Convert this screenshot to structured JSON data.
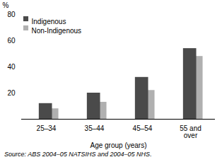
{
  "chart_data": {
    "type": "bar",
    "categories": [
      "25–34",
      "35–44",
      "45–54",
      "55 and\nover"
    ],
    "series": [
      {
        "name": "Indigenous",
        "color": "#4a4a4a",
        "values": [
          12,
          20,
          32,
          54
        ]
      },
      {
        "name": "Non-Indigenous",
        "color": "#b0b0b0",
        "values": [
          8,
          13,
          22,
          48
        ]
      }
    ],
    "ylabel": "%",
    "xlabel": "Age group (years)",
    "ylim": [
      0,
      80
    ],
    "yticks": [
      20,
      40,
      60,
      80
    ],
    "source": "Source: ABS 2004–05 NATSIHS and 2004–05 NHS.",
    "legend": "upper left",
    "grid": false
  }
}
